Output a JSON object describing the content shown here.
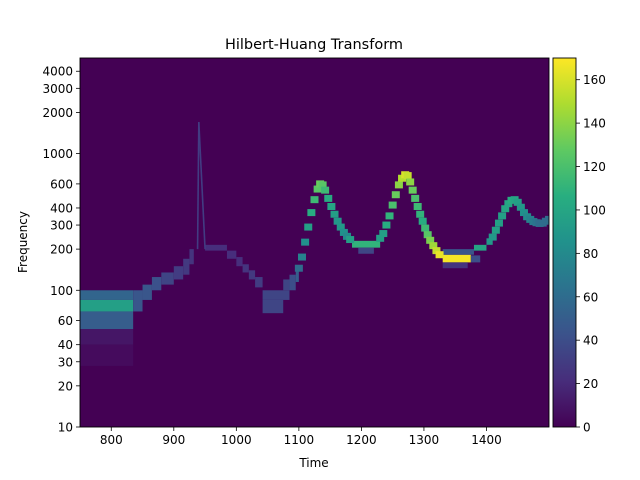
{
  "chart_data": {
    "type": "heatmap",
    "title": "Hilbert-Huang Transform",
    "xlabel": "Time",
    "ylabel": "Frequency",
    "x_scale": "linear",
    "y_scale": "log",
    "xlim": [
      750,
      1500
    ],
    "ylim": [
      10,
      5000
    ],
    "x_ticks": [
      800,
      900,
      1000,
      1100,
      1200,
      1300,
      1400
    ],
    "x_tick_labels": [
      "800",
      "900",
      "1000",
      "1100",
      "1200",
      "1300",
      "1400"
    ],
    "y_ticks": [
      10,
      20,
      30,
      40,
      60,
      100,
      200,
      300,
      400,
      600,
      1000,
      2000,
      3000,
      4000
    ],
    "y_tick_labels": [
      "10",
      "20",
      "30",
      "40",
      "60",
      "100",
      "200",
      "300",
      "400",
      "600",
      "1000",
      "2000",
      "3000",
      "4000"
    ],
    "colormap": "viridis",
    "colorbar": {
      "range": [
        0,
        170
      ],
      "ticks": [
        0,
        20,
        40,
        60,
        80,
        100,
        120,
        140,
        160
      ],
      "tick_labels": [
        "0",
        "20",
        "40",
        "60",
        "80",
        "100",
        "120",
        "140",
        "160"
      ]
    },
    "background_value": 0,
    "grid": false,
    "cells": [
      {
        "x0": 750,
        "x1": 835,
        "f0": 85,
        "f1": 100,
        "value": 55
      },
      {
        "x0": 750,
        "x1": 835,
        "f0": 70,
        "f1": 85,
        "value": 95
      },
      {
        "x0": 750,
        "x1": 835,
        "f0": 52,
        "f1": 70,
        "value": 50
      },
      {
        "x0": 750,
        "x1": 835,
        "f0": 40,
        "f1": 52,
        "value": 10
      },
      {
        "x0": 750,
        "x1": 835,
        "f0": 28,
        "f1": 40,
        "value": 5
      },
      {
        "x0": 835,
        "x1": 850,
        "f0": 70,
        "f1": 100,
        "value": 45
      },
      {
        "x0": 850,
        "x1": 865,
        "f0": 85,
        "f1": 110,
        "value": 45
      },
      {
        "x0": 865,
        "x1": 880,
        "f0": 100,
        "f1": 125,
        "value": 42
      },
      {
        "x0": 880,
        "x1": 900,
        "f0": 110,
        "f1": 135,
        "value": 35
      },
      {
        "x0": 900,
        "x1": 915,
        "f0": 120,
        "f1": 150,
        "value": 30
      },
      {
        "x0": 915,
        "x1": 925,
        "f0": 130,
        "f1": 170,
        "value": 28
      },
      {
        "x0": 925,
        "x1": 932,
        "f0": 155,
        "f1": 200,
        "value": 25
      },
      {
        "x0": 950,
        "x1": 985,
        "f0": 195,
        "f1": 215,
        "value": 22
      },
      {
        "x0": 985,
        "x1": 1000,
        "f0": 170,
        "f1": 195,
        "value": 22
      },
      {
        "x0": 1000,
        "x1": 1010,
        "f0": 150,
        "f1": 175,
        "value": 22
      },
      {
        "x0": 1010,
        "x1": 1020,
        "f0": 135,
        "f1": 155,
        "value": 25
      },
      {
        "x0": 1020,
        "x1": 1030,
        "f0": 120,
        "f1": 140,
        "value": 28
      },
      {
        "x0": 1030,
        "x1": 1042,
        "f0": 105,
        "f1": 125,
        "value": 30
      },
      {
        "x0": 1042,
        "x1": 1085,
        "f0": 85,
        "f1": 100,
        "value": 35
      },
      {
        "x0": 1042,
        "x1": 1075,
        "f0": 68,
        "f1": 85,
        "value": 35
      },
      {
        "x0": 1075,
        "x1": 1085,
        "f0": 100,
        "f1": 120,
        "value": 35
      },
      {
        "x0": 1085,
        "x1": 1095,
        "f0": 100,
        "f1": 130,
        "value": 40
      },
      {
        "x0": 1095,
        "x1": 1100,
        "f0": 115,
        "f1": 145,
        "value": 50
      },
      {
        "x0": 1185,
        "x1": 1230,
        "f0": 205,
        "f1": 230,
        "value": 110
      },
      {
        "x0": 1195,
        "x1": 1220,
        "f0": 185,
        "f1": 205,
        "value": 35
      },
      {
        "x0": 1330,
        "x1": 1375,
        "f0": 160,
        "f1": 182,
        "value": 168
      },
      {
        "x0": 1330,
        "x1": 1380,
        "f0": 182,
        "f1": 200,
        "value": 45
      },
      {
        "x0": 1375,
        "x1": 1390,
        "f0": 160,
        "f1": 180,
        "value": 40
      },
      {
        "x0": 1330,
        "x1": 1370,
        "f0": 145,
        "f1": 160,
        "value": 25
      },
      {
        "x0": 1380,
        "x1": 1400,
        "f0": 195,
        "f1": 215,
        "value": 100
      },
      {
        "x0": 1400,
        "x1": 1410,
        "f0": 215,
        "f1": 240,
        "value": 90
      }
    ],
    "ridge_points": [
      [
        1100,
        145,
        60
      ],
      [
        1105,
        175,
        75
      ],
      [
        1110,
        225,
        85
      ],
      [
        1115,
        290,
        95
      ],
      [
        1120,
        370,
        105
      ],
      [
        1125,
        460,
        115
      ],
      [
        1130,
        550,
        125
      ],
      [
        1134,
        600,
        130
      ],
      [
        1138,
        590,
        125
      ],
      [
        1142,
        540,
        115
      ],
      [
        1147,
        470,
        105
      ],
      [
        1152,
        410,
        100
      ],
      [
        1157,
        360,
        95
      ],
      [
        1162,
        320,
        90
      ],
      [
        1167,
        290,
        90
      ],
      [
        1172,
        265,
        85
      ],
      [
        1177,
        248,
        80
      ],
      [
        1182,
        235,
        95
      ],
      [
        1230,
        240,
        95
      ],
      [
        1235,
        260,
        95
      ],
      [
        1240,
        300,
        105
      ],
      [
        1245,
        350,
        110
      ],
      [
        1250,
        420,
        120
      ],
      [
        1255,
        500,
        130
      ],
      [
        1260,
        590,
        140
      ],
      [
        1265,
        660,
        150
      ],
      [
        1270,
        700,
        160
      ],
      [
        1274,
        690,
        155
      ],
      [
        1278,
        620,
        140
      ],
      [
        1282,
        540,
        130
      ],
      [
        1286,
        470,
        120
      ],
      [
        1290,
        410,
        115
      ],
      [
        1294,
        360,
        110
      ],
      [
        1298,
        320,
        105
      ],
      [
        1302,
        285,
        115
      ],
      [
        1306,
        255,
        125
      ],
      [
        1310,
        232,
        135
      ],
      [
        1315,
        212,
        145
      ],
      [
        1320,
        195,
        155
      ],
      [
        1325,
        182,
        165
      ],
      [
        1410,
        245,
        90
      ],
      [
        1415,
        275,
        95
      ],
      [
        1420,
        310,
        95
      ],
      [
        1425,
        350,
        95
      ],
      [
        1430,
        395,
        100
      ],
      [
        1435,
        430,
        100
      ],
      [
        1440,
        455,
        105
      ],
      [
        1445,
        460,
        100
      ],
      [
        1450,
        440,
        95
      ],
      [
        1455,
        405,
        90
      ],
      [
        1460,
        370,
        85
      ],
      [
        1465,
        345,
        80
      ],
      [
        1470,
        330,
        75
      ],
      [
        1475,
        318,
        70
      ],
      [
        1480,
        312,
        65
      ],
      [
        1485,
        308,
        60
      ],
      [
        1490,
        310,
        60
      ],
      [
        1495,
        320,
        60
      ],
      [
        1500,
        330,
        60
      ]
    ],
    "spike": {
      "x": 940,
      "f_start": 200,
      "f_peak": 1700,
      "value": 30
    }
  }
}
